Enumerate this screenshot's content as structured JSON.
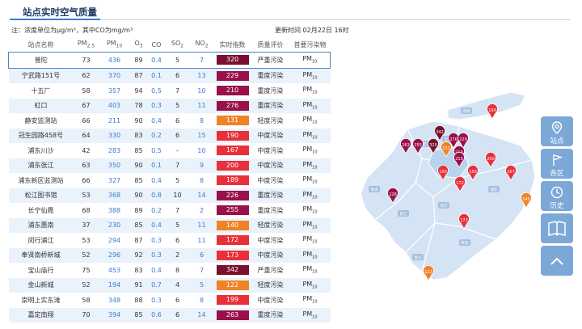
{
  "header": {
    "title": "站点实时空气质量",
    "note": "注：浓度单位为μg/m³，其中CO为mg/m³",
    "updated": "更新时间 02月22日 16时"
  },
  "table": {
    "columns": {
      "name": "站点名称",
      "pm25_base": "PM",
      "pm25_sub": "2.5",
      "pm10_base": "PM",
      "pm10_sub": "10",
      "o3_base": "O",
      "o3_sub": "3",
      "co": "CO",
      "so2_base": "SO",
      "so2_sub": "2",
      "no2_base": "NO",
      "no2_sub": "2",
      "aqi": "实时指数",
      "level": "质量评价",
      "pollutant": "首要污染物"
    },
    "pollutant_base": "PM",
    "pollutant_sub": "10",
    "rows": [
      {
        "name": "普陀",
        "pm25": "73",
        "pm10": "436",
        "o3": "89",
        "co": "0.4",
        "so2": "5",
        "no2": "7",
        "aqi": "320",
        "level": "严重污染",
        "color": "#7a0f2e"
      },
      {
        "name": "宁武路151号",
        "pm25": "62",
        "pm10": "370",
        "o3": "87",
        "co": "0.1",
        "so2": "6",
        "no2": "13",
        "aqi": "229",
        "level": "重度污染",
        "color": "#99104a"
      },
      {
        "name": "十五厂",
        "pm25": "58",
        "pm10": "357",
        "o3": "94",
        "co": "0.5",
        "so2": "7",
        "no2": "10",
        "aqi": "210",
        "level": "重度污染",
        "color": "#99104a"
      },
      {
        "name": "虹口",
        "pm25": "67",
        "pm10": "403",
        "o3": "78",
        "co": "0.3",
        "so2": "5",
        "no2": "11",
        "aqi": "276",
        "level": "重度污染",
        "color": "#99104a"
      },
      {
        "name": "静安监测站",
        "pm25": "66",
        "pm10": "211",
        "o3": "90",
        "co": "0.4",
        "so2": "6",
        "no2": "8",
        "aqi": "131",
        "level": "轻度污染",
        "color": "#f08326"
      },
      {
        "name": "冠生园路458号",
        "pm25": "64",
        "pm10": "330",
        "o3": "83",
        "co": "0.2",
        "so2": "6",
        "no2": "15",
        "aqi": "190",
        "level": "中度污染",
        "color": "#e8303a"
      },
      {
        "name": "浦东川沙",
        "pm25": "42",
        "pm10": "283",
        "o3": "85",
        "co": "0.5",
        "so2": "-",
        "no2": "10",
        "aqi": "167",
        "level": "中度污染",
        "color": "#e8303a"
      },
      {
        "name": "浦东张江",
        "pm25": "63",
        "pm10": "350",
        "o3": "90",
        "co": "0.1",
        "so2": "7",
        "no2": "9",
        "aqi": "200",
        "level": "中度污染",
        "color": "#e8303a"
      },
      {
        "name": "浦东新区监测站",
        "pm25": "66",
        "pm10": "327",
        "o3": "85",
        "co": "0.4",
        "so2": "5",
        "no2": "8",
        "aqi": "189",
        "level": "中度污染",
        "color": "#e8303a"
      },
      {
        "name": "松江图书馆",
        "pm25": "53",
        "pm10": "368",
        "o3": "90",
        "co": "0.8",
        "so2": "10",
        "no2": "14",
        "aqi": "226",
        "level": "重度污染",
        "color": "#99104a"
      },
      {
        "name": "长宁仙霞",
        "pm25": "68",
        "pm10": "388",
        "o3": "89",
        "co": "0.2",
        "so2": "7",
        "no2": "2",
        "aqi": "255",
        "level": "重度污染",
        "color": "#99104a"
      },
      {
        "name": "浦东惠南",
        "pm25": "37",
        "pm10": "230",
        "o3": "85",
        "co": "0.4",
        "so2": "5",
        "no2": "11",
        "aqi": "140",
        "level": "轻度污染",
        "color": "#f08326"
      },
      {
        "name": "闵行浦江",
        "pm25": "53",
        "pm10": "294",
        "o3": "87",
        "co": "0.3",
        "so2": "6",
        "no2": "11",
        "aqi": "172",
        "level": "中度污染",
        "color": "#e8303a"
      },
      {
        "name": "奉贤南桥新城",
        "pm25": "52",
        "pm10": "296",
        "o3": "92",
        "co": "0.3",
        "so2": "2",
        "no2": "6",
        "aqi": "173",
        "level": "中度污染",
        "color": "#e8303a"
      },
      {
        "name": "宝山庙行",
        "pm25": "75",
        "pm10": "453",
        "o3": "83",
        "co": "0.4",
        "so2": "8",
        "no2": "7",
        "aqi": "342",
        "level": "严重污染",
        "color": "#7a0f2e"
      },
      {
        "name": "金山新城",
        "pm25": "52",
        "pm10": "194",
        "o3": "91",
        "co": "0.7",
        "so2": "4",
        "no2": "5",
        "aqi": "122",
        "level": "轻度污染",
        "color": "#f08326"
      },
      {
        "name": "崇明上实东滩",
        "pm25": "58",
        "pm10": "348",
        "o3": "88",
        "co": "0.3",
        "so2": "6",
        "no2": "8",
        "aqi": "199",
        "level": "中度污染",
        "color": "#e8303a"
      },
      {
        "name": "嘉定南翔",
        "pm25": "70",
        "pm10": "394",
        "o3": "85",
        "co": "0.6",
        "so2": "6",
        "no2": "14",
        "aqi": "263",
        "level": "重度污染",
        "color": "#99104a"
      }
    ]
  },
  "map": {
    "districts": [
      "崇明",
      "宝山",
      "嘉定",
      "浦东",
      "青浦",
      "松江",
      "闵行",
      "奉贤",
      "金山"
    ],
    "markers": [
      "199",
      "342",
      "276",
      "229",
      "263",
      "255",
      "320",
      "131",
      "210",
      "200",
      "167",
      "190",
      "210",
      "189",
      "226",
      "140",
      "172",
      "173",
      "122"
    ]
  },
  "sidebar": {
    "station": "站点",
    "district": "各区",
    "history": "历史",
    "book_icon": "book-icon",
    "up_icon": "chevron-up-icon"
  },
  "colors": {
    "severe": "#7a0f2e",
    "heavy": "#99104a",
    "moderate": "#e8303a",
    "light": "#f08326",
    "accent": "#3b7bd0",
    "sidebar": "#7ca8d8"
  }
}
